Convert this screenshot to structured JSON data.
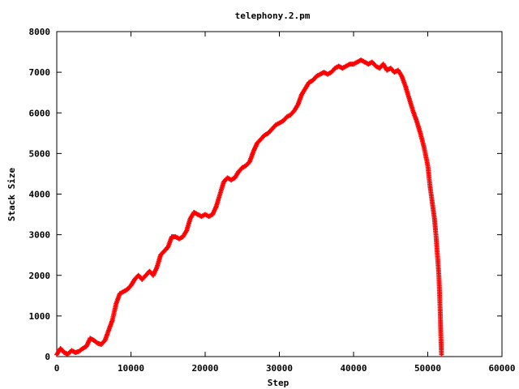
{
  "chart_data": {
    "type": "scatter",
    "title": "telephony.2.pm",
    "xlabel": "Step",
    "ylabel": "Stack Size",
    "xlim": [
      0,
      60000
    ],
    "ylim": [
      0,
      8000
    ],
    "xticks": [
      0,
      10000,
      20000,
      30000,
      40000,
      50000,
      60000
    ],
    "yticks": [
      0,
      1000,
      2000,
      3000,
      4000,
      5000,
      6000,
      7000,
      8000
    ],
    "xtick_labels": [
      "0",
      "10000",
      "20000",
      "30000",
      "40000",
      "50000",
      "60000"
    ],
    "ytick_labels": [
      "0",
      "1000",
      "2000",
      "3000",
      "4000",
      "5000",
      "6000",
      "7000",
      "8000"
    ],
    "grid": false,
    "marker": "+",
    "series": [
      {
        "color": "#ff0000",
        "points": [
          [
            0,
            50
          ],
          [
            500,
            200
          ],
          [
            1000,
            100
          ],
          [
            1500,
            60
          ],
          [
            2000,
            150
          ],
          [
            2500,
            100
          ],
          [
            3000,
            130
          ],
          [
            3500,
            200
          ],
          [
            4000,
            250
          ],
          [
            4500,
            450
          ],
          [
            5000,
            400
          ],
          [
            5500,
            330
          ],
          [
            6000,
            300
          ],
          [
            6500,
            400
          ],
          [
            7000,
            650
          ],
          [
            7500,
            900
          ],
          [
            8000,
            1300
          ],
          [
            8500,
            1550
          ],
          [
            9000,
            1600
          ],
          [
            9500,
            1650
          ],
          [
            10000,
            1750
          ],
          [
            10500,
            1900
          ],
          [
            11000,
            2000
          ],
          [
            11500,
            1900
          ],
          [
            12000,
            2000
          ],
          [
            12500,
            2100
          ],
          [
            13000,
            2000
          ],
          [
            13500,
            2200
          ],
          [
            14000,
            2500
          ],
          [
            14500,
            2600
          ],
          [
            15000,
            2700
          ],
          [
            15500,
            2950
          ],
          [
            16000,
            2950
          ],
          [
            16500,
            2900
          ],
          [
            17000,
            2950
          ],
          [
            17500,
            3100
          ],
          [
            18000,
            3400
          ],
          [
            18500,
            3550
          ],
          [
            19000,
            3500
          ],
          [
            19500,
            3450
          ],
          [
            20000,
            3500
          ],
          [
            20500,
            3450
          ],
          [
            21000,
            3500
          ],
          [
            21500,
            3700
          ],
          [
            22000,
            4000
          ],
          [
            22500,
            4300
          ],
          [
            23000,
            4400
          ],
          [
            23500,
            4350
          ],
          [
            24000,
            4400
          ],
          [
            24500,
            4550
          ],
          [
            25000,
            4650
          ],
          [
            25500,
            4700
          ],
          [
            26000,
            4800
          ],
          [
            26500,
            5050
          ],
          [
            27000,
            5250
          ],
          [
            27500,
            5350
          ],
          [
            28000,
            5450
          ],
          [
            28500,
            5500
          ],
          [
            29000,
            5600
          ],
          [
            29500,
            5700
          ],
          [
            30000,
            5750
          ],
          [
            30500,
            5800
          ],
          [
            31000,
            5900
          ],
          [
            31500,
            5950
          ],
          [
            32000,
            6050
          ],
          [
            32500,
            6200
          ],
          [
            33000,
            6450
          ],
          [
            33500,
            6600
          ],
          [
            34000,
            6750
          ],
          [
            34500,
            6800
          ],
          [
            35000,
            6900
          ],
          [
            35500,
            6950
          ],
          [
            36000,
            7000
          ],
          [
            36500,
            6950
          ],
          [
            37000,
            7000
          ],
          [
            37500,
            7100
          ],
          [
            38000,
            7150
          ],
          [
            38500,
            7100
          ],
          [
            39000,
            7150
          ],
          [
            39500,
            7200
          ],
          [
            40000,
            7200
          ],
          [
            40500,
            7250
          ],
          [
            41000,
            7300
          ],
          [
            41500,
            7250
          ],
          [
            42000,
            7200
          ],
          [
            42500,
            7250
          ],
          [
            43000,
            7150
          ],
          [
            43500,
            7100
          ],
          [
            44000,
            7200
          ],
          [
            44500,
            7050
          ],
          [
            45000,
            7100
          ],
          [
            45500,
            7000
          ],
          [
            46000,
            7050
          ],
          [
            46500,
            6900
          ],
          [
            47000,
            6650
          ],
          [
            47500,
            6350
          ],
          [
            48000,
            6050
          ],
          [
            48500,
            5800
          ],
          [
            49000,
            5500
          ],
          [
            49500,
            5150
          ],
          [
            50000,
            4700
          ],
          [
            50300,
            4200
          ],
          [
            50600,
            3800
          ],
          [
            50900,
            3400
          ],
          [
            51100,
            3000
          ],
          [
            51300,
            2500
          ],
          [
            51500,
            2000
          ],
          [
            51600,
            1500
          ],
          [
            51700,
            1000
          ],
          [
            51750,
            600
          ],
          [
            51800,
            300
          ],
          [
            51850,
            50
          ]
        ]
      }
    ]
  }
}
